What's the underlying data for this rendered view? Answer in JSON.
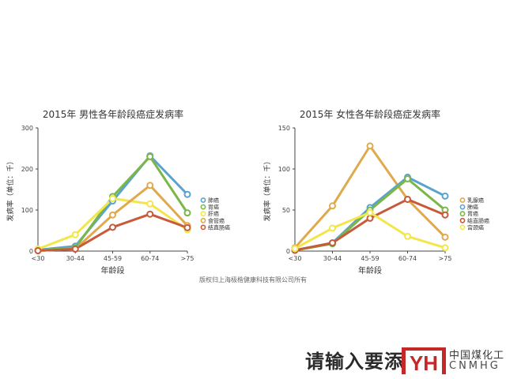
{
  "chart_data": [
    {
      "type": "line",
      "title": "2015年 男性各年龄段癌症发病率",
      "xlabel": "年龄段",
      "ylabel": "发病率（单位：千）",
      "categories": [
        "<30",
        "30-44",
        "45-59",
        "60-74",
        ">75"
      ],
      "ylim": [
        0,
        300
      ],
      "yticks": [
        0,
        100,
        200,
        300
      ],
      "grid": false,
      "legend": "right",
      "series": [
        {
          "name": "肺癌",
          "color": "#5ba3cf",
          "values": [
            3,
            12,
            122,
            232,
            138
          ]
        },
        {
          "name": "胃癌",
          "color": "#7ab648",
          "values": [
            2,
            8,
            133,
            230,
            93
          ]
        },
        {
          "name": "肝癌",
          "color": "#f2e64c",
          "values": [
            5,
            40,
            128,
            115,
            52
          ]
        },
        {
          "name": "食管癌",
          "color": "#e0a94b",
          "values": [
            1,
            5,
            88,
            160,
            62
          ]
        },
        {
          "name": "结直肠癌",
          "color": "#c85a3c",
          "values": [
            1,
            5,
            58,
            90,
            57
          ]
        }
      ]
    },
    {
      "type": "line",
      "title": "2015年 女性各年龄段癌症发病率",
      "xlabel": "年龄段",
      "ylabel": "发病率（单位：千）",
      "categories": [
        "<30",
        "30-44",
        "45-59",
        "60-74",
        ">75"
      ],
      "ylim": [
        0,
        150
      ],
      "yticks": [
        0,
        50,
        100,
        150
      ],
      "grid": false,
      "legend": "right",
      "series": [
        {
          "name": "乳腺癌",
          "color": "#e0a94b",
          "values": [
            4,
            55,
            128,
            63,
            17
          ]
        },
        {
          "name": "肺癌",
          "color": "#5ba3cf",
          "values": [
            1,
            10,
            53,
            90,
            67
          ]
        },
        {
          "name": "胃癌",
          "color": "#7ab648",
          "values": [
            1,
            9,
            50,
            88,
            50
          ]
        },
        {
          "name": "结直肠癌",
          "color": "#c85a3c",
          "values": [
            1,
            10,
            40,
            63,
            44
          ]
        },
        {
          "name": "宫颈癌",
          "color": "#f2e64c",
          "values": [
            3,
            28,
            47,
            18,
            4
          ]
        }
      ]
    }
  ],
  "copyright": "版权归上海极楷健康科技有限公司所有",
  "caption": "请输入要添",
  "watermark": {
    "logo_text": "YH",
    "cn": "中国煤化工",
    "en": "CNMHG"
  }
}
